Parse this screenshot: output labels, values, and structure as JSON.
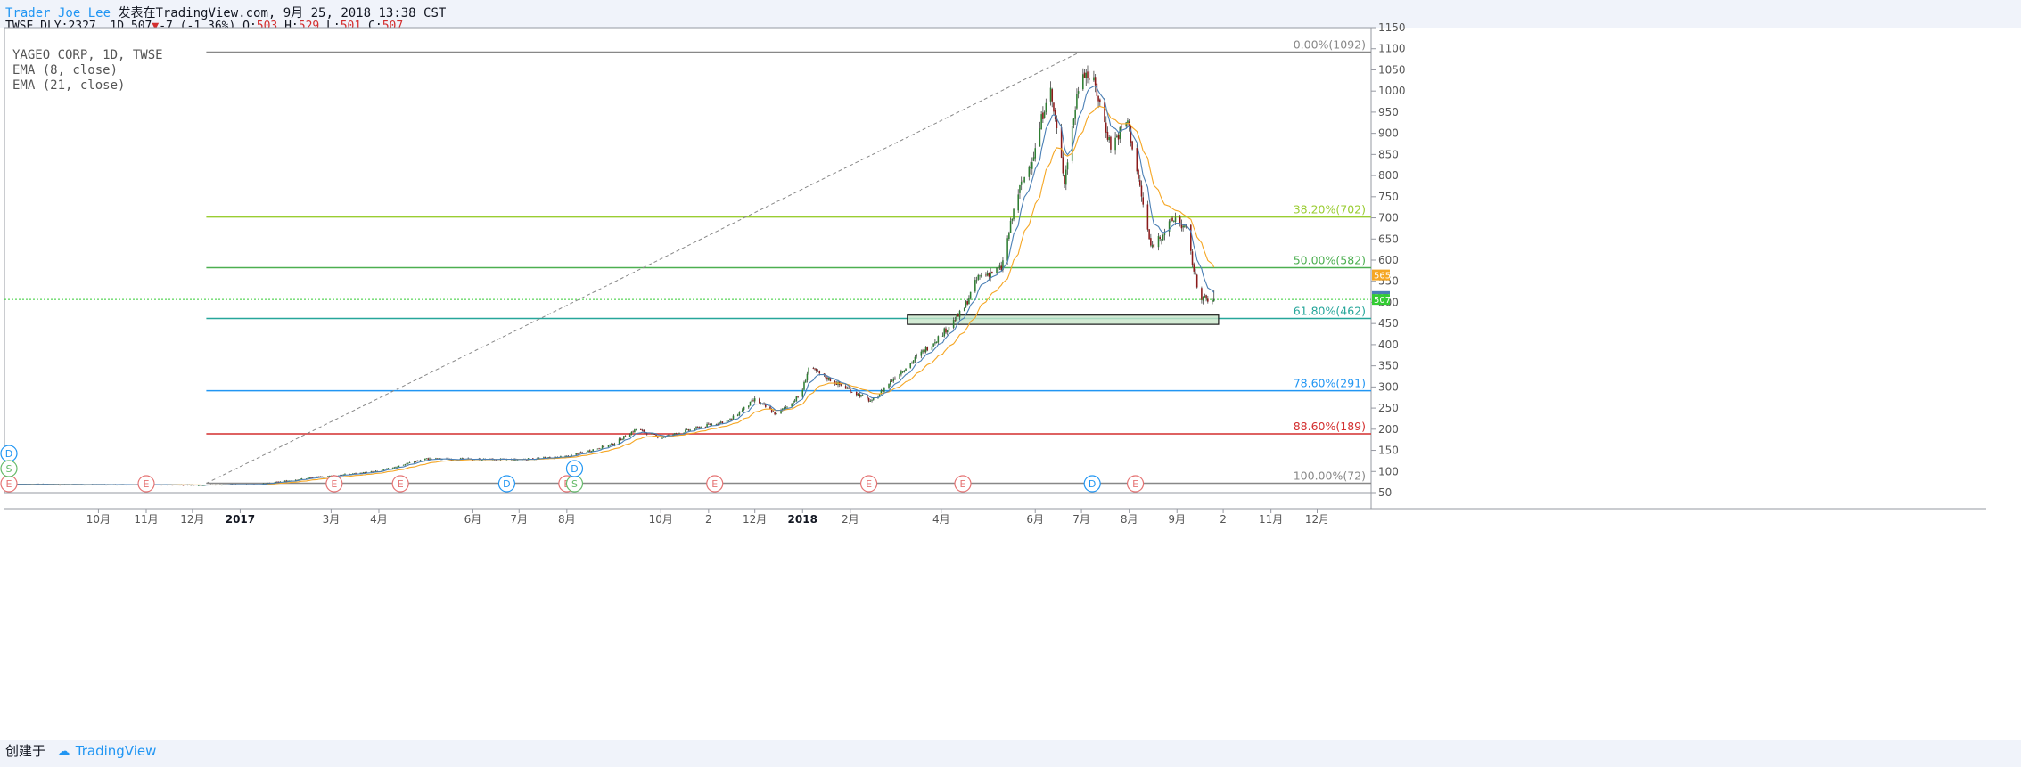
{
  "header": {
    "author": "Trader_Joe_Lee",
    "published": "发表在TradingView.com, 9月 25, 2018 13:38 CST",
    "symbol": "TWSE_DLY:2327, 1D",
    "last": "507",
    "change": "-7 (-1.36%)",
    "o_label": "O:",
    "o": "503",
    "h_label": "H:",
    "h": "529",
    "l_label": "L:",
    "l": "501",
    "c_label": "C:",
    "c": "507"
  },
  "legend": [
    "YAGEO CORP, 1D, TWSE",
    "EMA (8, close)",
    "EMA (21, close)"
  ],
  "footer": {
    "created": "创建于",
    "brand": "TradingView"
  },
  "colors": {
    "up": "#2e7d32",
    "down": "#8b1a1a",
    "ema8": "#4a7fb5",
    "ema21": "#f5a623"
  },
  "chart_data": {
    "type": "candlestick",
    "y_axis": {
      "position": "right",
      "min": 50,
      "max": 1150,
      "ticks": [
        "50",
        "100",
        "150",
        "200",
        "250",
        "300",
        "350",
        "400",
        "450",
        "500",
        "550",
        "600",
        "650",
        "700",
        "750",
        "800",
        "850",
        "900",
        "950",
        "1000",
        "1050",
        "1100",
        "1150"
      ]
    },
    "x_axis": {
      "range": [
        "2016-08-01",
        "2019-01-05"
      ],
      "labels": [
        {
          "date": "2016-10-01",
          "label": "10月"
        },
        {
          "date": "2016-11-01",
          "label": "11月"
        },
        {
          "date": "2016-12-01",
          "label": "12月"
        },
        {
          "date": "2017-01-01",
          "label": "2017",
          "bold": true
        },
        {
          "date": "2017-03-01",
          "label": "3月"
        },
        {
          "date": "2017-04-01",
          "label": "4月"
        },
        {
          "date": "2017-06-01",
          "label": "6月"
        },
        {
          "date": "2017-07-01",
          "label": "7月"
        },
        {
          "date": "2017-08-01",
          "label": "8月"
        },
        {
          "date": "2017-10-01",
          "label": "10月"
        },
        {
          "date": "2017-11-01",
          "label": "2"
        },
        {
          "date": "2017-12-01",
          "label": "12月"
        },
        {
          "date": "2018-01-01",
          "label": "2018",
          "bold": true
        },
        {
          "date": "2018-02-01",
          "label": "2月"
        },
        {
          "date": "2018-04-01",
          "label": "4月"
        },
        {
          "date": "2018-06-01",
          "label": "6月"
        },
        {
          "date": "2018-07-01",
          "label": "7月"
        },
        {
          "date": "2018-08-01",
          "label": "8月"
        },
        {
          "date": "2018-09-01",
          "label": "9月"
        },
        {
          "date": "2018-10-01",
          "label": "2"
        },
        {
          "date": "2018-11-01",
          "label": "11月"
        },
        {
          "date": "2018-12-01",
          "label": "12月"
        }
      ]
    },
    "price_path": [
      [
        "2016-08-01",
        70
      ],
      [
        "2016-12-10",
        68
      ],
      [
        "2017-01-15",
        70
      ],
      [
        "2017-02-15",
        85
      ],
      [
        "2017-03-31",
        100
      ],
      [
        "2017-05-01",
        130
      ],
      [
        "2017-06-30",
        128
      ],
      [
        "2017-08-01",
        135
      ],
      [
        "2017-08-31",
        165
      ],
      [
        "2017-09-15",
        200
      ],
      [
        "2017-10-01",
        180
      ],
      [
        "2017-11-01",
        210
      ],
      [
        "2017-11-15",
        222
      ],
      [
        "2017-12-01",
        270
      ],
      [
        "2017-12-15",
        235
      ],
      [
        "2017-12-31",
        282
      ],
      [
        "2018-01-05",
        345
      ],
      [
        "2018-01-20",
        315
      ],
      [
        "2018-02-15",
        265
      ],
      [
        "2018-03-01",
        320
      ],
      [
        "2018-03-31",
        420
      ],
      [
        "2018-04-15",
        480
      ],
      [
        "2018-04-25",
        560
      ],
      [
        "2018-05-10",
        580
      ],
      [
        "2018-05-20",
        750
      ],
      [
        "2018-06-01",
        860
      ],
      [
        "2018-06-10",
        1020
      ],
      [
        "2018-06-20",
        790
      ],
      [
        "2018-07-01",
        1060
      ],
      [
        "2018-07-10",
        1010
      ],
      [
        "2018-07-20",
        870
      ],
      [
        "2018-07-31",
        930
      ],
      [
        "2018-08-15",
        630
      ],
      [
        "2018-08-31",
        700
      ],
      [
        "2018-09-07",
        670
      ],
      [
        "2018-09-15",
        520
      ],
      [
        "2018-09-22",
        500
      ],
      [
        "2018-09-25",
        507
      ]
    ],
    "last_price": 507,
    "price_labels": [
      {
        "value": 565,
        "text": "565",
        "color": "#f5a623"
      },
      {
        "value": 514,
        "text": "514",
        "color": "#4a7fb5"
      },
      {
        "value": 507,
        "text": "507",
        "color": "#33cc33"
      }
    ],
    "fibonacci": {
      "x_start": "2016-12-10",
      "levels": [
        {
          "ratio": "0.00%",
          "value": 1092,
          "label": "0.00%(1092)",
          "color": "#888888"
        },
        {
          "ratio": "38.20%",
          "value": 702,
          "label": "38.20%(702)",
          "color": "#9acd32"
        },
        {
          "ratio": "50.00%",
          "value": 582,
          "label": "50.00%(582)",
          "color": "#4caf50"
        },
        {
          "ratio": "61.80%",
          "value": 462,
          "label": "61.80%(462)",
          "color": "#26a69a"
        },
        {
          "ratio": "78.60%",
          "value": 291,
          "label": "78.60%(291)",
          "color": "#2196f3"
        },
        {
          "ratio": "88.60%",
          "value": 189,
          "label": "88.60%(189)",
          "color": "#d32f2f"
        },
        {
          "ratio": "100.00%",
          "value": 72,
          "label": "100.00%(72)",
          "color": "#888888"
        }
      ]
    },
    "trend_line": {
      "from": [
        "2016-12-10",
        72
      ],
      "to": [
        "2018-06-30",
        1092
      ]
    },
    "support_zone": {
      "from": "2018-03-10",
      "to": "2018-09-28",
      "low": 448,
      "high": 470
    },
    "events": [
      {
        "date": "2016-08-02",
        "type": "E",
        "row": "bottom"
      },
      {
        "date": "2016-11-01",
        "type": "E",
        "row": "bottom"
      },
      {
        "date": "2017-03-03",
        "type": "E",
        "row": "bottom"
      },
      {
        "date": "2017-04-15",
        "type": "E",
        "row": "bottom"
      },
      {
        "date": "2017-06-23",
        "type": "D",
        "row": "bottom"
      },
      {
        "date": "2017-08-01",
        "type": "E",
        "row": "bottom"
      },
      {
        "date": "2017-08-06",
        "type": "S",
        "row": "bottom"
      },
      {
        "date": "2017-08-06",
        "type": "D",
        "row": "upper"
      },
      {
        "date": "2017-11-05",
        "type": "E",
        "row": "bottom"
      },
      {
        "date": "2018-02-13",
        "type": "E",
        "row": "bottom"
      },
      {
        "date": "2018-04-15",
        "type": "E",
        "row": "bottom"
      },
      {
        "date": "2018-07-08",
        "type": "D",
        "row": "bottom"
      },
      {
        "date": "2018-08-05",
        "type": "E",
        "row": "bottom"
      },
      {
        "date": "2016-08-02",
        "type": "D",
        "row": "top"
      },
      {
        "date": "2016-08-02",
        "type": "S",
        "row": "upper"
      }
    ]
  }
}
